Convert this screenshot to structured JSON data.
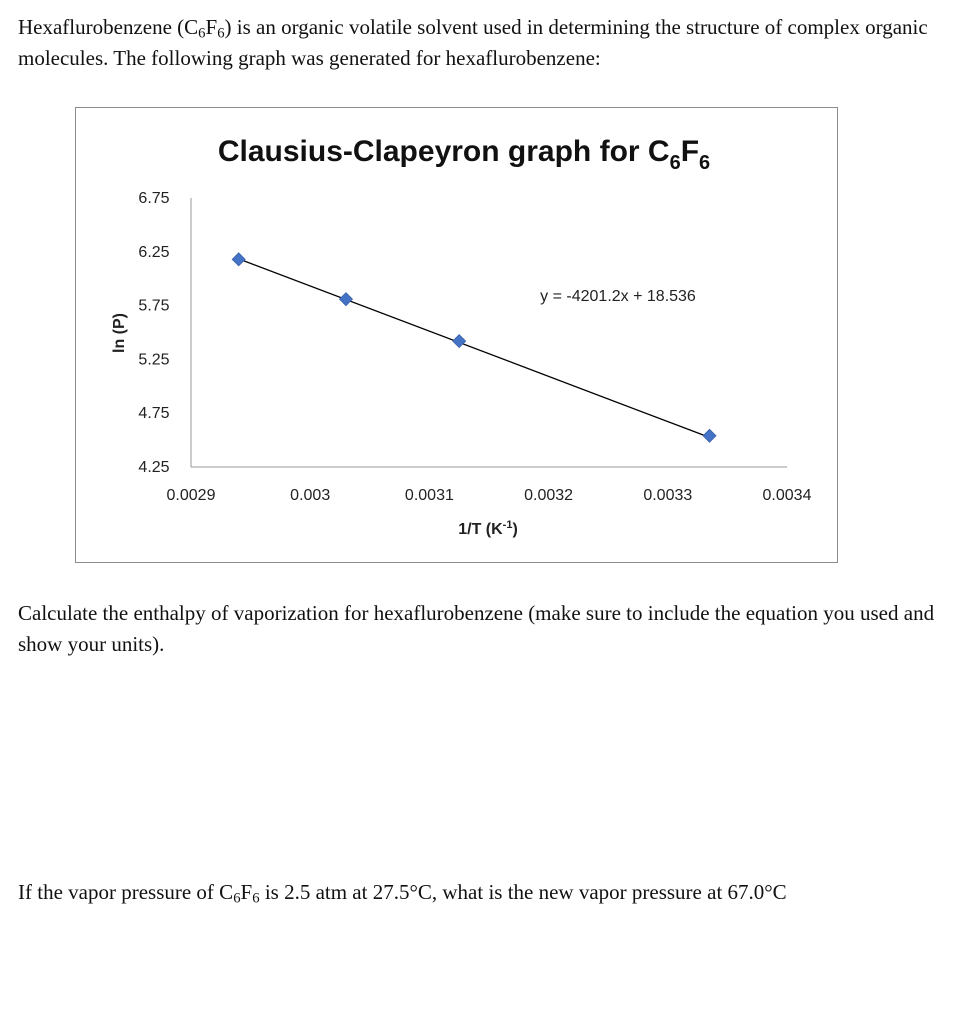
{
  "intro": {
    "part1": "Hexaflurobenzene (C",
    "sub1": "6",
    "part2": "F",
    "sub2": "6",
    "part3": ") is an organic volatile solvent used in determining the structure of complex organic molecules.  The following graph was generated for hexaflurobenzene:"
  },
  "question1": "Calculate the enthalpy of vaporization for hexaflurobenzene (make sure to include the equation you used and show your units).",
  "question2": {
    "part1": "If the vapor pressure of C",
    "sub1": "6",
    "part2": "F",
    "sub2": "6",
    "part3": " is 2.5 atm at 27.5°C, what is the new vapor pressure at 67.0°C"
  },
  "chart_data": {
    "type": "scatter",
    "title": "Clausius-Clapeyron graph for C6F6",
    "title_parts": {
      "main": "Clausius-Clapeyron graph for C",
      "sub1": "6",
      "mid": "F",
      "sub2": "6"
    },
    "xlabel": "1/T (K-1)",
    "xlabel_parts": {
      "main": "1/T (K",
      "sup": "-1",
      "end": ")"
    },
    "ylabel": "ln (P)",
    "xlim": [
      0.0029,
      0.0034
    ],
    "ylim": [
      4.25,
      6.75
    ],
    "x_ticks": [
      "0.0029",
      "0.003",
      "0.0031",
      "0.0032",
      "0.0033",
      "0.0034"
    ],
    "y_ticks": [
      "6.75",
      "6.25",
      "5.75",
      "5.25",
      "4.75",
      "4.25"
    ],
    "series": [
      {
        "x": [
          0.00294,
          0.00303,
          0.003125,
          0.003335
        ],
        "y": [
          6.18,
          5.81,
          5.42,
          4.54
        ]
      }
    ],
    "trendline": {
      "slope": -4201.2,
      "intercept": 18.536,
      "label": "y = -4201.2x + 18.536"
    },
    "marker_color": "#4472c4",
    "line_color": "#000000",
    "grid": false
  }
}
